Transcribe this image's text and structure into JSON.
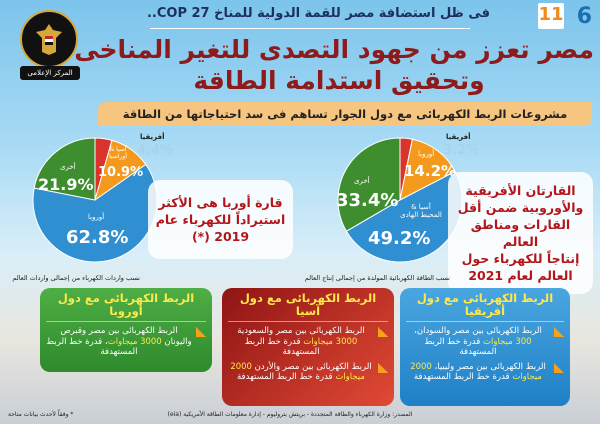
{
  "header": {
    "page_number": "6",
    "date_day": "11",
    "kicker": "فى ظل استضافة مصر للقمة الدولية للمناخ COP 27..",
    "title_line1": "مصر تعزز من جهود التصدى للتغير المناخى",
    "title_line2": "وتحقيق استدامة الطاقة",
    "logo_text": "المركز الإعلامى",
    "banner": "مشروعات الربط الكهربائى مع دول الجوار تساهم فى سد احتياجاتها من الطاقة"
  },
  "colors": {
    "africa": "#d9342b",
    "europe": "#f39a1e",
    "asia": "#2f8fd0",
    "other": "#3e8e2f",
    "title": "#8e1b1b"
  },
  "chart_data": [
    {
      "type": "pie",
      "caption": "نسب الطاقة الكهربائية المولدة من إجمالى إنتاج العالم",
      "slices": [
        {
          "label": "أفريقيا",
          "value": 3.2,
          "display": "3.2%"
        },
        {
          "label": "أوروبا",
          "value": 14.2,
          "display": "14.2%"
        },
        {
          "label": "آسيا & المحيط الهادى",
          "value": 49.2,
          "display": "49.2%"
        },
        {
          "label": "أخرى",
          "value": 33.4,
          "display": "33.4%"
        }
      ],
      "callout": [
        "القارتان الأفريقية",
        "والأوروبية ضمن أقل",
        "القارات ومناطق العالم",
        "إنتاجاً للكهرباء حول",
        "العالم لعام 2021"
      ]
    },
    {
      "type": "pie",
      "caption": "نسب واردات الكهرباء من إجمالى واردات العالم",
      "slices": [
        {
          "label": "أفريقيا",
          "value": 4.4,
          "display": "4.4%"
        },
        {
          "label": "آسيا & أوراسيا",
          "value": 10.9,
          "display": "10.9%"
        },
        {
          "label": "أوروبا",
          "value": 62.8,
          "display": "62.8%"
        },
        {
          "label": "أخرى",
          "value": 21.9,
          "display": "21.9%"
        }
      ],
      "callout": [
        "قارة أوربا هى الأكثر",
        "استيراداً للكهرباء عام",
        "2019 (*)"
      ]
    }
  ],
  "cards": [
    {
      "title": "الربط الكهربائى مع دول أفريقيا",
      "items": [
        {
          "pre": "الربط الكهربائى بين مصر والسودان، ",
          "hl": "300 ميجاوات",
          "post": " قدرة خط الربط المستهدفة"
        },
        {
          "pre": "الربط الكهربائى بين مصر وليبيا، ",
          "hl": "2000 ميجاوات",
          "post": " قدرة خط الربط المستهدفة"
        }
      ]
    },
    {
      "title": "الربط الكهربائى مع دول آسيا",
      "items": [
        {
          "pre": "الربط الكهربائى بين مصر والسعودية ",
          "hl": "3000 ميجاوات",
          "post": " قدرة خط الربط المستهدفة"
        },
        {
          "pre": "الربط الكهربائى بين مصر والأردن ",
          "hl": "2000 ميجاوات",
          "post": " قدرة خط الربط المستهدفة"
        }
      ]
    },
    {
      "title": "الربط الكهربائى مع دول أوروبا",
      "items": [
        {
          "pre": "الربط الكهربائى بين مصر وقبرص واليونان ",
          "hl": "3000 ميجاوات",
          "post": "، قدرة خط الربط المستهدفة"
        }
      ]
    }
  ],
  "footer": {
    "source": "المصدر: وزارة الكهرباء والطاقة المتجددة - بريتش بتروليوم - إدارة معلومات الطاقة الأمريكية (eia)",
    "footnote": "* وفقاً لأحدث بيانات متاحة"
  }
}
